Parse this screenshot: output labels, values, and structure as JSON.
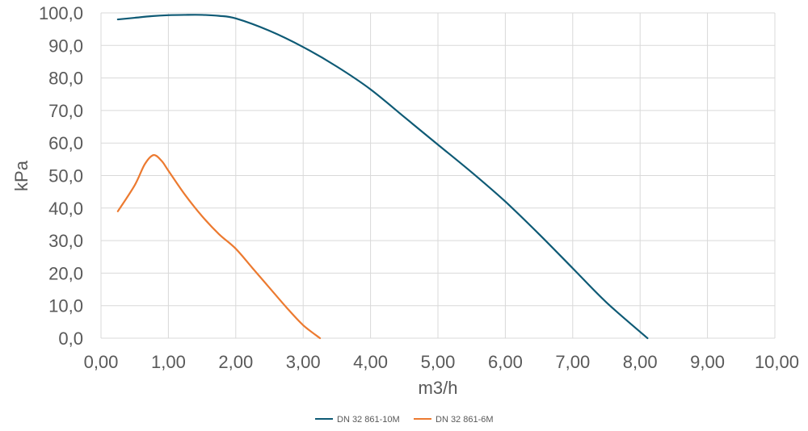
{
  "chart_data": {
    "type": "line",
    "title": "",
    "xlabel": "m3/h",
    "ylabel": "kPa",
    "xlim": [
      0,
      10
    ],
    "ylim": [
      0,
      100
    ],
    "x_ticks": [
      "0,00",
      "1,00",
      "2,00",
      "3,00",
      "4,00",
      "5,00",
      "6,00",
      "7,00",
      "8,00",
      "9,00",
      "10,00"
    ],
    "y_ticks": [
      "0,0",
      "10,0",
      "20,0",
      "30,0",
      "40,0",
      "50,0",
      "60,0",
      "70,0",
      "80,0",
      "90,0",
      "100,0"
    ],
    "grid": true,
    "legend_position": "bottom",
    "series": [
      {
        "name": "DN 32 861-10M",
        "color": "#0e5a75",
        "points": [
          [
            0.25,
            98.0
          ],
          [
            0.5,
            98.5
          ],
          [
            0.75,
            99.0
          ],
          [
            1.0,
            99.3
          ],
          [
            1.25,
            99.4
          ],
          [
            1.5,
            99.4
          ],
          [
            1.75,
            99.1
          ],
          [
            2.0,
            98.3
          ],
          [
            2.5,
            94.5
          ],
          [
            3.0,
            89.5
          ],
          [
            3.5,
            83.5
          ],
          [
            4.0,
            76.5
          ],
          [
            4.5,
            68.0
          ],
          [
            5.0,
            59.5
          ],
          [
            5.5,
            51.0
          ],
          [
            6.0,
            42.0
          ],
          [
            6.5,
            32.0
          ],
          [
            7.0,
            21.5
          ],
          [
            7.5,
            11.0
          ],
          [
            8.11,
            0.0
          ]
        ]
      },
      {
        "name": "DN 32 861-6M",
        "color": "#ec7a30",
        "points": [
          [
            0.25,
            39.0
          ],
          [
            0.5,
            47.0
          ],
          [
            0.65,
            53.5
          ],
          [
            0.78,
            56.3
          ],
          [
            0.9,
            54.5
          ],
          [
            1.0,
            51.5
          ],
          [
            1.25,
            44.0
          ],
          [
            1.5,
            37.5
          ],
          [
            1.75,
            32.0
          ],
          [
            2.0,
            27.5
          ],
          [
            2.25,
            21.5
          ],
          [
            2.5,
            15.5
          ],
          [
            2.75,
            9.5
          ],
          [
            3.0,
            4.0
          ],
          [
            3.25,
            0.0
          ]
        ]
      }
    ]
  }
}
